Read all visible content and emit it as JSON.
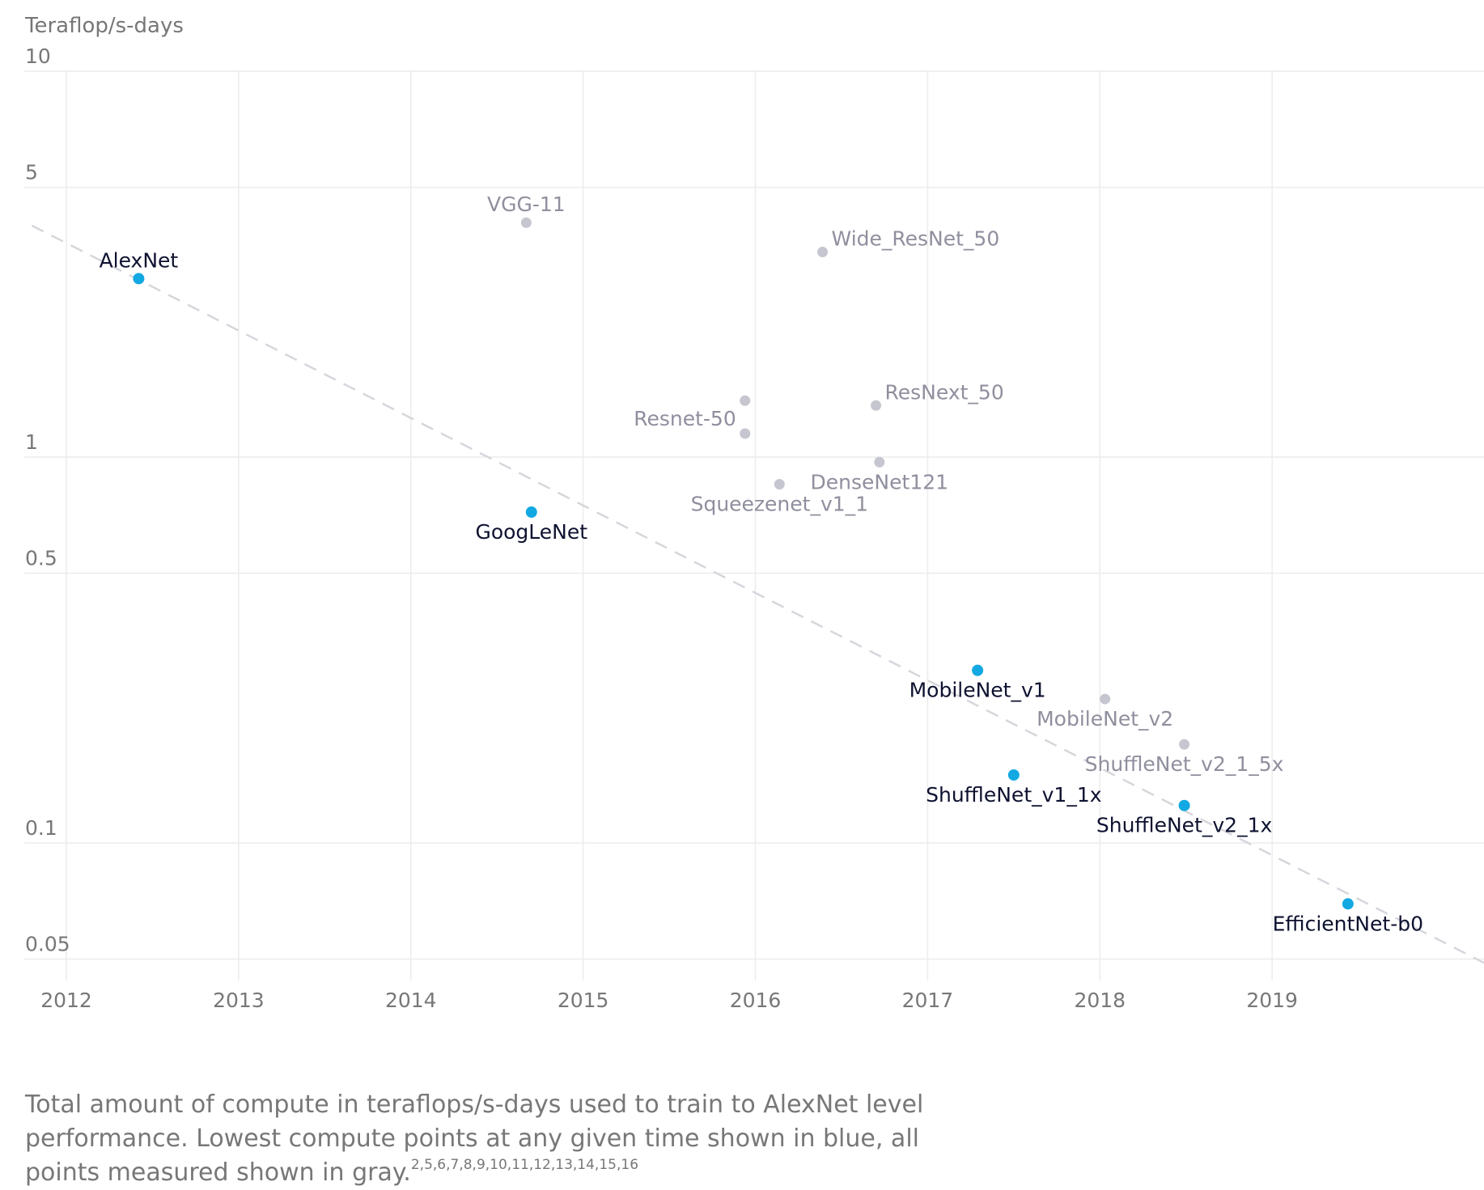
{
  "chart_data": {
    "type": "scatter",
    "ylabel": "Teraflop/s-days",
    "yscale": "log",
    "ylim": [
      0.044,
      10
    ],
    "yticks": [
      10,
      5,
      1,
      0.5,
      0.1,
      0.05
    ],
    "ytick_labels": [
      "10",
      "5",
      "1",
      "0.5",
      "0.1",
      "0.05"
    ],
    "xlim": [
      2012,
      2020.23
    ],
    "xticks": [
      2012,
      2013,
      2014,
      2015,
      2016,
      2017,
      2018,
      2019
    ],
    "xtick_labels": [
      "2012",
      "2013",
      "2014",
      "2015",
      "2016",
      "2017",
      "2018",
      "2019"
    ],
    "grid": true,
    "colors": {
      "lowest": "#12a9e2",
      "measured": "#c6c6d0",
      "trend": "#d6d6dc",
      "grid": "#ececec"
    },
    "trend_line": {
      "x": [
        2011.8,
        2020.23
      ],
      "y": [
        3.98,
        0.0489
      ]
    },
    "points": [
      {
        "name": "AlexNet",
        "x": 2012.42,
        "y": 2.9,
        "group": "lowest",
        "label_pos": "above"
      },
      {
        "name": "VGG-11",
        "x": 2014.67,
        "y": 4.05,
        "group": "measured",
        "label_pos": "above"
      },
      {
        "name": "Wide_ResNet_50",
        "x": 2016.39,
        "y": 3.4,
        "group": "measured",
        "label_pos": "right"
      },
      {
        "name": "Resnet-50",
        "x": 2015.94,
        "y": 1.4,
        "group": "measured",
        "label_pos": "none"
      },
      {
        "name": "Resnet-50",
        "x": 2015.94,
        "y": 1.15,
        "group": "measured",
        "label_pos": "left"
      },
      {
        "name": "ResNext_50",
        "x": 2016.7,
        "y": 1.36,
        "group": "measured",
        "label_pos": "right"
      },
      {
        "name": "DenseNet121",
        "x": 2016.72,
        "y": 0.97,
        "group": "measured",
        "label_pos": "below"
      },
      {
        "name": "Squeezenet_v1_1",
        "x": 2016.14,
        "y": 0.85,
        "group": "measured",
        "label_pos": "below"
      },
      {
        "name": "GoogLeNet",
        "x": 2014.7,
        "y": 0.72,
        "group": "lowest",
        "label_pos": "below"
      },
      {
        "name": "MobileNet_v1",
        "x": 2017.29,
        "y": 0.28,
        "group": "lowest",
        "label_pos": "below"
      },
      {
        "name": "MobileNet_v2",
        "x": 2018.03,
        "y": 0.236,
        "group": "measured",
        "label_pos": "below"
      },
      {
        "name": "ShuffleNet_v2_1_5x",
        "x": 2018.49,
        "y": 0.18,
        "group": "measured",
        "label_pos": "below"
      },
      {
        "name": "ShuffleNet_v1_1x",
        "x": 2017.5,
        "y": 0.15,
        "group": "lowest",
        "label_pos": "below"
      },
      {
        "name": "ShuffleNet_v2_1x",
        "x": 2018.49,
        "y": 0.125,
        "group": "lowest",
        "label_pos": "below"
      },
      {
        "name": "EfficientNet-b0",
        "x": 2019.44,
        "y": 0.0695,
        "group": "lowest",
        "label_pos": "below"
      }
    ]
  },
  "caption": {
    "text": "Total amount of compute in teraflops/s-days used to train to AlexNet level performance. Lowest compute points at any given time shown in blue, all points measured shown in gray.",
    "refs": "2,5,6,7,8,9,10,11,12,13,14,15,16"
  }
}
